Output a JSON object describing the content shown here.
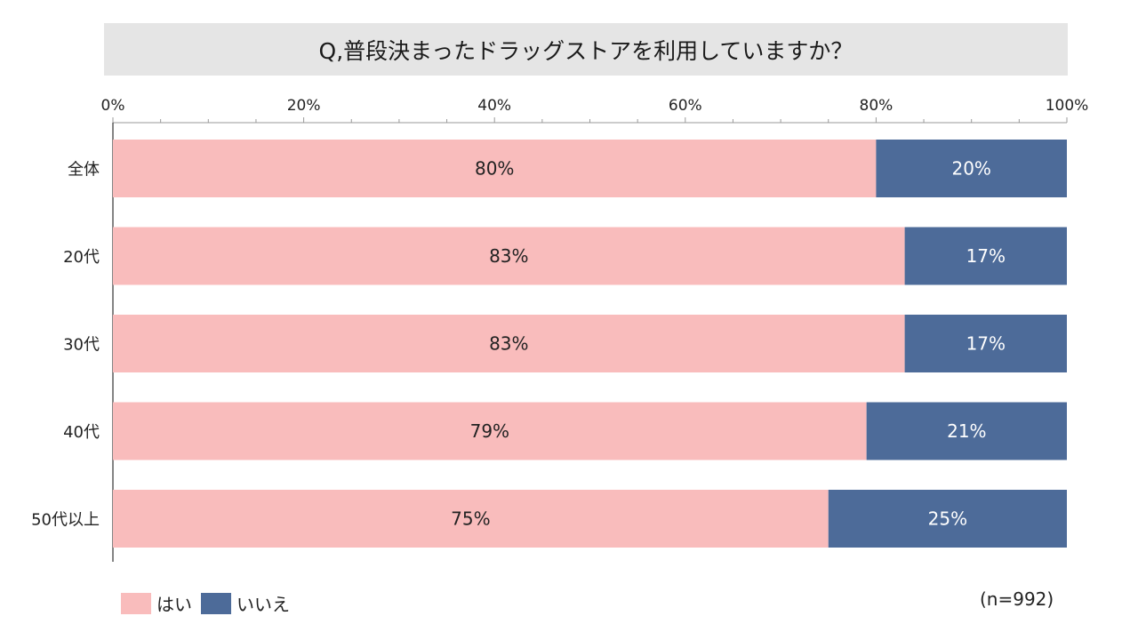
{
  "chart_data": {
    "type": "bar",
    "orientation": "horizontal",
    "stacked": true,
    "title": "Q,普段決まったドラッグストアを利用していますか？",
    "categories": [
      "全体",
      "20代",
      "30代",
      "40代",
      "50代以上"
    ],
    "series": [
      {
        "name": "はい",
        "values": [
          80,
          83,
          83,
          79,
          75
        ],
        "labels": [
          "80%",
          "83%",
          "83%",
          "79%",
          "75%"
        ],
        "color": "#f9bcbc"
      },
      {
        "name": "いいえ",
        "values": [
          20,
          17,
          17,
          21,
          25
        ],
        "labels": [
          "20%",
          "17%",
          "17%",
          "21%",
          "25%"
        ],
        "color": "#4d6b99"
      }
    ],
    "xlim": [
      0,
      100
    ],
    "x_ticks": [
      "0%",
      "20%",
      "40%",
      "60%",
      "80%",
      "100%"
    ],
    "x_tick_values": [
      0,
      20,
      40,
      60,
      80,
      100
    ],
    "axis_position": "top",
    "legend_position": "bottom-left",
    "note": "(n=992)"
  },
  "colors": {
    "yes": "#f9bcbc",
    "no": "#4d6b99",
    "title_bg": "#e5e5e5"
  }
}
